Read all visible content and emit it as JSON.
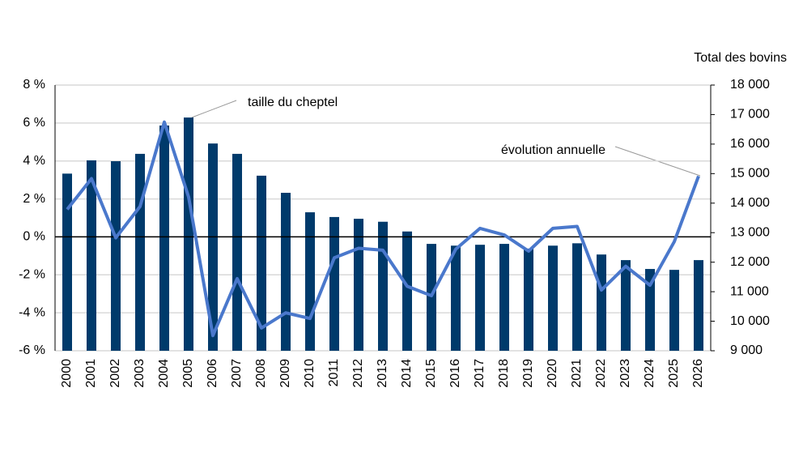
{
  "chart_data": {
    "type": "bar-line",
    "y2_title": "Total des bovins",
    "annotations": [
      {
        "text": "taille du cheptel"
      },
      {
        "text": "évolution annuelle"
      }
    ],
    "categories": [
      "2000",
      "2001",
      "2002",
      "2003",
      "2004",
      "2005",
      "2006",
      "2007",
      "2008",
      "2009",
      "2010",
      "2011",
      "2012",
      "2013",
      "2014",
      "2015",
      "2016",
      "2017",
      "2018",
      "2019",
      "2020",
      "2021",
      "2022",
      "2023",
      "2024",
      "2025",
      "2026"
    ],
    "series": [
      {
        "type": "bar",
        "axis": "y2",
        "color": "#003a6b",
        "values": [
          15000,
          15450,
          15420,
          15670,
          16630,
          16900,
          16020,
          15670,
          14930,
          14350,
          13690,
          13530,
          13470,
          13370,
          13040,
          12620,
          12560,
          12590,
          12620,
          12460,
          12560,
          12640,
          12260,
          12070,
          11770,
          11740,
          12070
        ]
      },
      {
        "type": "line",
        "axis": "y",
        "color": "#4a78cc",
        "values": [
          1.45,
          3.07,
          -0.05,
          1.6,
          6.05,
          2.1,
          -5.2,
          -2.2,
          -4.8,
          -4.0,
          -4.3,
          -1.1,
          -0.6,
          -0.7,
          -2.6,
          -3.1,
          -0.65,
          0.45,
          0.1,
          -0.75,
          0.45,
          0.55,
          -2.8,
          -1.55,
          -2.55,
          -0.25,
          3.2
        ]
      }
    ],
    "ylim": [
      -6,
      8
    ],
    "yticks": [
      {
        "value": -6,
        "label": "-6 %"
      },
      {
        "value": -4,
        "label": "-4 %"
      },
      {
        "value": -2,
        "label": "-2 %"
      },
      {
        "value": 0,
        "label": "0 %"
      },
      {
        "value": 2,
        "label": "2 %"
      },
      {
        "value": 4,
        "label": "4 %"
      },
      {
        "value": 6,
        "label": "6 %"
      },
      {
        "value": 8,
        "label": "8 %"
      }
    ],
    "y2lim": [
      9000,
      18000
    ],
    "y2ticks": [
      {
        "value": 9000,
        "label": "9 000"
      },
      {
        "value": 10000,
        "label": "10 000"
      },
      {
        "value": 11000,
        "label": "11 000"
      },
      {
        "value": 12000,
        "label": "12 000"
      },
      {
        "value": 13000,
        "label": "13 000"
      },
      {
        "value": 14000,
        "label": "14 000"
      },
      {
        "value": 15000,
        "label": "15 000"
      },
      {
        "value": 16000,
        "label": "16 000"
      },
      {
        "value": 17000,
        "label": "17 000"
      },
      {
        "value": 18000,
        "label": "18 000"
      }
    ],
    "grid": true
  }
}
